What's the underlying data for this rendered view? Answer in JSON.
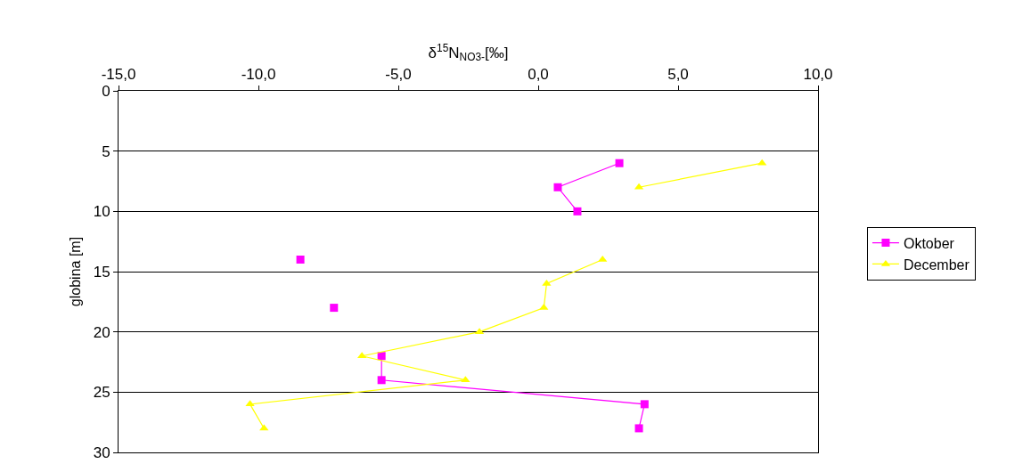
{
  "chart_data": {
    "type": "line",
    "xlabel": "δ$^{15}$N$_{NO3-}$[‰]",
    "ylabel": "globina [m]",
    "xlim": [
      -15,
      10
    ],
    "xticks": [
      {
        "value": -15,
        "label": "-15,0"
      },
      {
        "value": -10,
        "label": "-10,0"
      },
      {
        "value": -5,
        "label": "-5,0"
      },
      {
        "value": 0,
        "label": "0,0"
      },
      {
        "value": 5,
        "label": "5,0"
      },
      {
        "value": 10,
        "label": "10,0"
      }
    ],
    "ylim": [
      30,
      0
    ],
    "yticks": [
      0,
      5,
      10,
      15,
      20,
      25,
      30
    ],
    "grid": "y",
    "legend": "right",
    "line_style": "solid",
    "series": [
      {
        "name": "Oktober",
        "color": "#ff00ff",
        "marker": "square",
        "x": [
          2.9,
          0.7,
          1.4,
          null,
          -8.5,
          null,
          -7.3,
          null,
          -5.6,
          -5.6,
          3.8,
          3.6
        ],
        "values": [
          6,
          8,
          10,
          null,
          14,
          null,
          18,
          null,
          22,
          24,
          26,
          28
        ]
      },
      {
        "name": "December",
        "color": "#ffff00",
        "marker": "triangle",
        "x": [
          8.0,
          3.6,
          null,
          2.3,
          0.3,
          0.2,
          -2.1,
          -6.3,
          -2.6,
          -10.3,
          -9.8
        ],
        "values": [
          6,
          8,
          null,
          14,
          16,
          18,
          20,
          22,
          24,
          26,
          28
        ]
      }
    ]
  }
}
